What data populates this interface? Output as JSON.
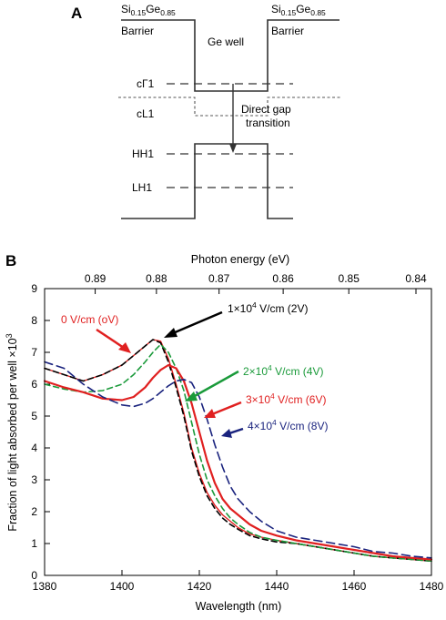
{
  "panel_a": {
    "letter": "A",
    "left_material": {
      "base": "Si",
      "sub1": "0.15",
      "mid": "Ge",
      "sub2": "0.85"
    },
    "right_material": {
      "base": "Si",
      "sub1": "0.15",
      "mid": "Ge",
      "sub2": "0.85"
    },
    "left_region": "Barrier",
    "right_region": "Barrier",
    "well_label": "Ge well",
    "levels": {
      "cG1": "cΓ1",
      "cL1": "cL1",
      "HH1": "HH1",
      "LH1": "LH1"
    },
    "transition_line1": "Direct gap",
    "transition_line2": "transition"
  },
  "panel_b": {
    "letter": "B"
  },
  "chart_data": {
    "type": "line",
    "title": "",
    "xlabel": "Wavelength (nm)",
    "ylabel": "Fraction of light absorbed per well ×10",
    "ylabel_sup": "3",
    "x2label": "Photon energy (eV)",
    "xlim": [
      1380,
      1480
    ],
    "ylim": [
      0,
      9
    ],
    "x_ticks": [
      1380,
      1400,
      1420,
      1440,
      1460,
      1480
    ],
    "y_ticks": [
      0,
      1,
      2,
      3,
      4,
      5,
      6,
      7,
      8,
      9
    ],
    "x2_ticks": [
      "0.89",
      "0.88",
      "0.87",
      "0.86",
      "0.85",
      "0.84"
    ],
    "x2_tick_energies": [
      0.89,
      0.88,
      0.87,
      0.86,
      0.85,
      0.84
    ],
    "grid": false,
    "x": [
      1380,
      1385,
      1390,
      1395,
      1400,
      1403,
      1406,
      1408,
      1410,
      1412,
      1414,
      1416,
      1418,
      1420,
      1422,
      1424,
      1426,
      1428,
      1430,
      1433,
      1436,
      1440,
      1445,
      1450,
      1455,
      1460,
      1465,
      1470,
      1475,
      1480
    ],
    "series": [
      {
        "name": "0 V/cm (oV)",
        "color": "#e02020",
        "dash": "solid",
        "thin": true,
        "values": [
          6.5,
          6.3,
          6.1,
          6.3,
          6.6,
          6.9,
          7.2,
          7.4,
          7.35,
          6.8,
          6.0,
          5.1,
          4.0,
          3.2,
          2.6,
          2.2,
          1.9,
          1.7,
          1.5,
          1.3,
          1.2,
          1.1,
          1.0,
          0.9,
          0.8,
          0.7,
          0.6,
          0.55,
          0.5,
          0.45
        ]
      },
      {
        "name": "1×10",
        "name_sup": "4",
        "name_tail": " V/cm (2V)",
        "color": "#000000",
        "dash": "dashed",
        "values": [
          6.5,
          6.3,
          6.1,
          6.3,
          6.6,
          6.9,
          7.2,
          7.4,
          7.3,
          6.7,
          5.9,
          5.0,
          3.9,
          3.1,
          2.5,
          2.1,
          1.8,
          1.6,
          1.45,
          1.25,
          1.15,
          1.05,
          1.0,
          0.9,
          0.8,
          0.7,
          0.6,
          0.55,
          0.5,
          0.45
        ]
      },
      {
        "name": "2×10",
        "name_sup": "4",
        "name_tail": " V/cm (4V)",
        "color": "#1a9a3a",
        "dash": "dashed",
        "values": [
          6.0,
          5.85,
          5.75,
          5.8,
          6.0,
          6.3,
          6.7,
          7.0,
          7.25,
          7.0,
          6.5,
          5.8,
          4.8,
          3.8,
          3.0,
          2.5,
          2.1,
          1.8,
          1.6,
          1.35,
          1.2,
          1.1,
          1.0,
          0.9,
          0.8,
          0.7,
          0.6,
          0.55,
          0.5,
          0.45
        ]
      },
      {
        "name": "3×10",
        "name_sup": "4",
        "name_tail": " V/cm (6V)",
        "color": "#e02020",
        "dash": "solid",
        "values": [
          6.1,
          5.9,
          5.75,
          5.55,
          5.5,
          5.6,
          5.9,
          6.2,
          6.45,
          6.6,
          6.5,
          6.1,
          5.4,
          4.5,
          3.6,
          2.9,
          2.4,
          2.1,
          1.9,
          1.6,
          1.4,
          1.25,
          1.1,
          1.0,
          0.9,
          0.8,
          0.7,
          0.6,
          0.55,
          0.5
        ]
      },
      {
        "name": "4×10",
        "name_sup": "4",
        "name_tail": " V/cm (8V)",
        "color": "#1a237e",
        "dash": "dashed",
        "values": [
          6.7,
          6.5,
          6.0,
          5.6,
          5.35,
          5.3,
          5.4,
          5.55,
          5.75,
          5.95,
          6.1,
          6.15,
          6.05,
          5.6,
          4.9,
          4.1,
          3.4,
          2.8,
          2.4,
          2.0,
          1.7,
          1.4,
          1.2,
          1.1,
          1.0,
          0.9,
          0.75,
          0.7,
          0.6,
          0.55
        ]
      }
    ]
  }
}
